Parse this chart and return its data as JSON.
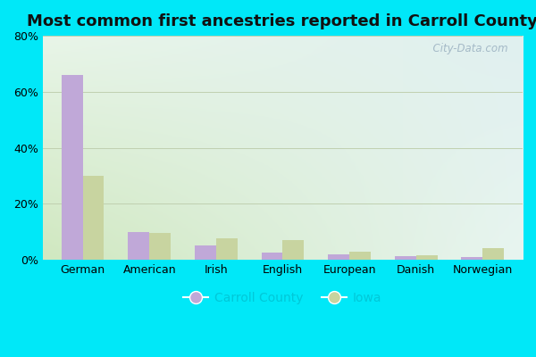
{
  "title": "Most common first ancestries reported in Carroll County",
  "categories": [
    "German",
    "American",
    "Irish",
    "English",
    "European",
    "Danish",
    "Norwegian"
  ],
  "carroll_county": [
    66,
    10,
    5,
    2.5,
    2,
    1.2,
    1.0
  ],
  "iowa": [
    30,
    9.5,
    7.5,
    7,
    3,
    1.5,
    4
  ],
  "carroll_color": "#c0a8d8",
  "iowa_color": "#c8d4a0",
  "ylim": [
    0,
    80
  ],
  "yticks": [
    0,
    20,
    40,
    60,
    80
  ],
  "ytick_labels": [
    "0%",
    "20%",
    "40%",
    "60%",
    "80%"
  ],
  "bar_width": 0.32,
  "background_outer": "#00e8f8",
  "grid_color": "#c0d0b0",
  "legend_labels": [
    "Carroll County",
    "Iowa"
  ],
  "watermark": "  City-Data.com",
  "title_fontsize": 13,
  "axis_fontsize": 9,
  "legend_fontsize": 10,
  "bg_topleft": "#e8f5e8",
  "bg_topright": "#e0f0f0",
  "bg_bottomleft": "#d0e8c0",
  "bg_bottomright": "#e8f5f0"
}
